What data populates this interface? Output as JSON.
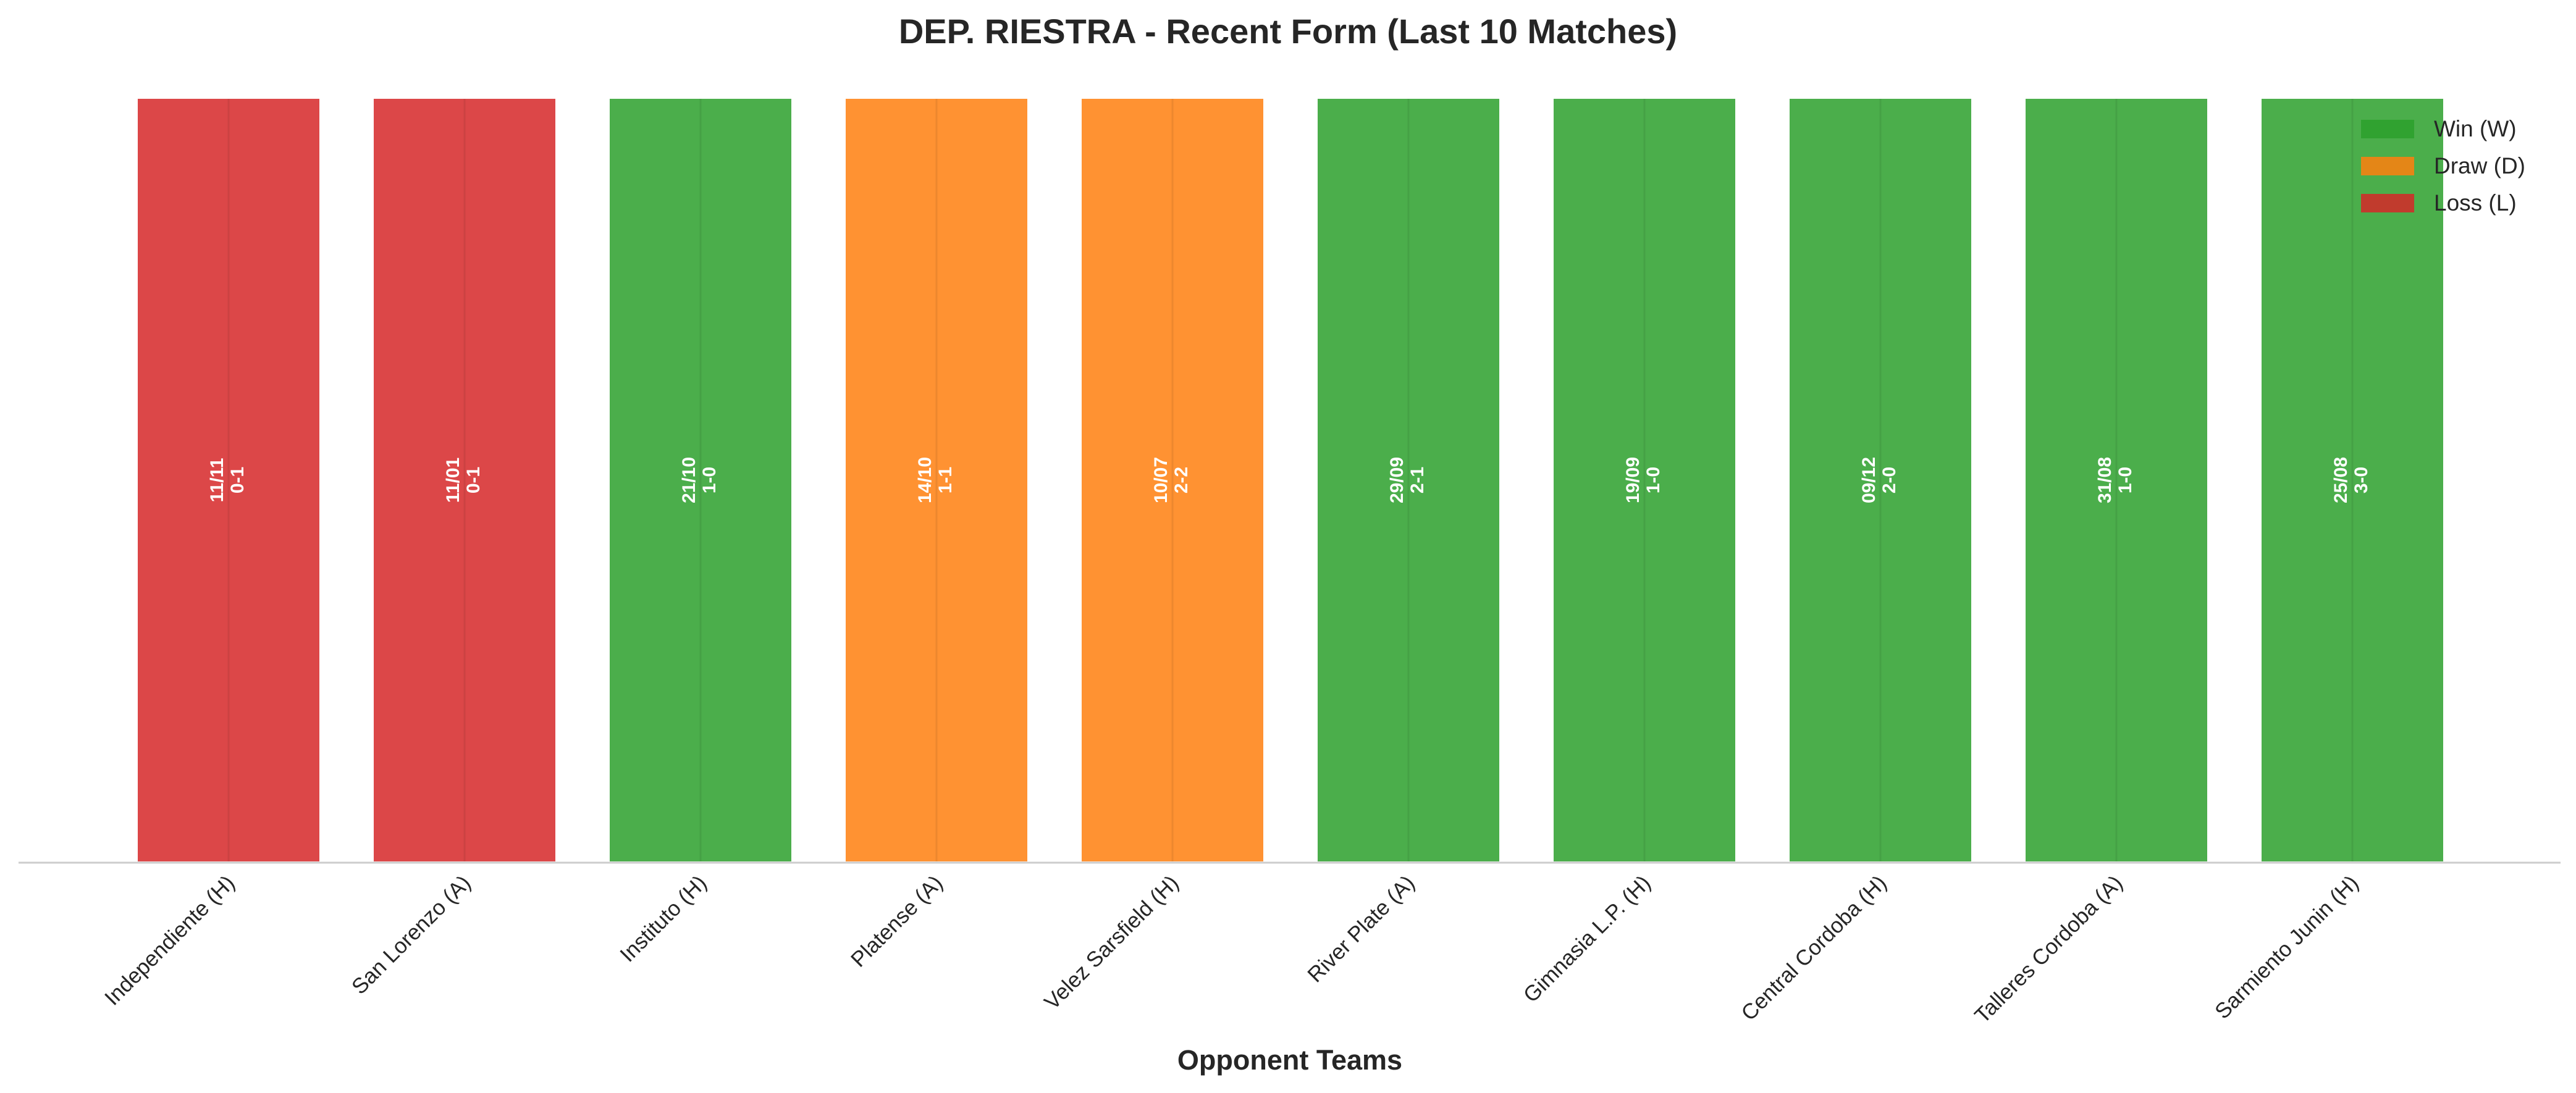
{
  "colors": {
    "W": "#2ca02c",
    "D": "#ff7f0e",
    "L": "#d62728"
  },
  "chart_data": {
    "type": "bar",
    "title": "DEP. RIESTRA - Recent Form (Last 10 Matches)",
    "xlabel": "Opponent Teams",
    "ylabel": "",
    "grid": false,
    "legend_position": "top-right",
    "legend": [
      {
        "key": "W",
        "label": "Win (W)"
      },
      {
        "key": "D",
        "label": "Draw (D)"
      },
      {
        "key": "L",
        "label": "Loss (L)"
      }
    ],
    "categories": [
      "Independiente (H)",
      "San Lorenzo (A)",
      "Instituto (H)",
      "Platense (A)",
      "Velez Sarsfield (H)",
      "River Plate (A)",
      "Gimnasia L.P. (H)",
      "Central Cordoba (H)",
      "Talleres Cordoba (A)",
      "Sarmiento Junin (H)"
    ],
    "values": [
      1,
      1,
      1,
      1,
      1,
      1,
      1,
      1,
      1,
      1
    ],
    "results": [
      "L",
      "L",
      "W",
      "D",
      "D",
      "W",
      "W",
      "W",
      "W",
      "W"
    ],
    "dates": [
      "11/11",
      "11/01",
      "21/10",
      "14/10",
      "10/07",
      "29/09",
      "19/09",
      "09/12",
      "31/08",
      "25/08"
    ],
    "scores": [
      "0-1",
      "0-1",
      "1-0",
      "1-1",
      "2-2",
      "2-1",
      "1-0",
      "2-0",
      "1-0",
      "3-0"
    ]
  }
}
